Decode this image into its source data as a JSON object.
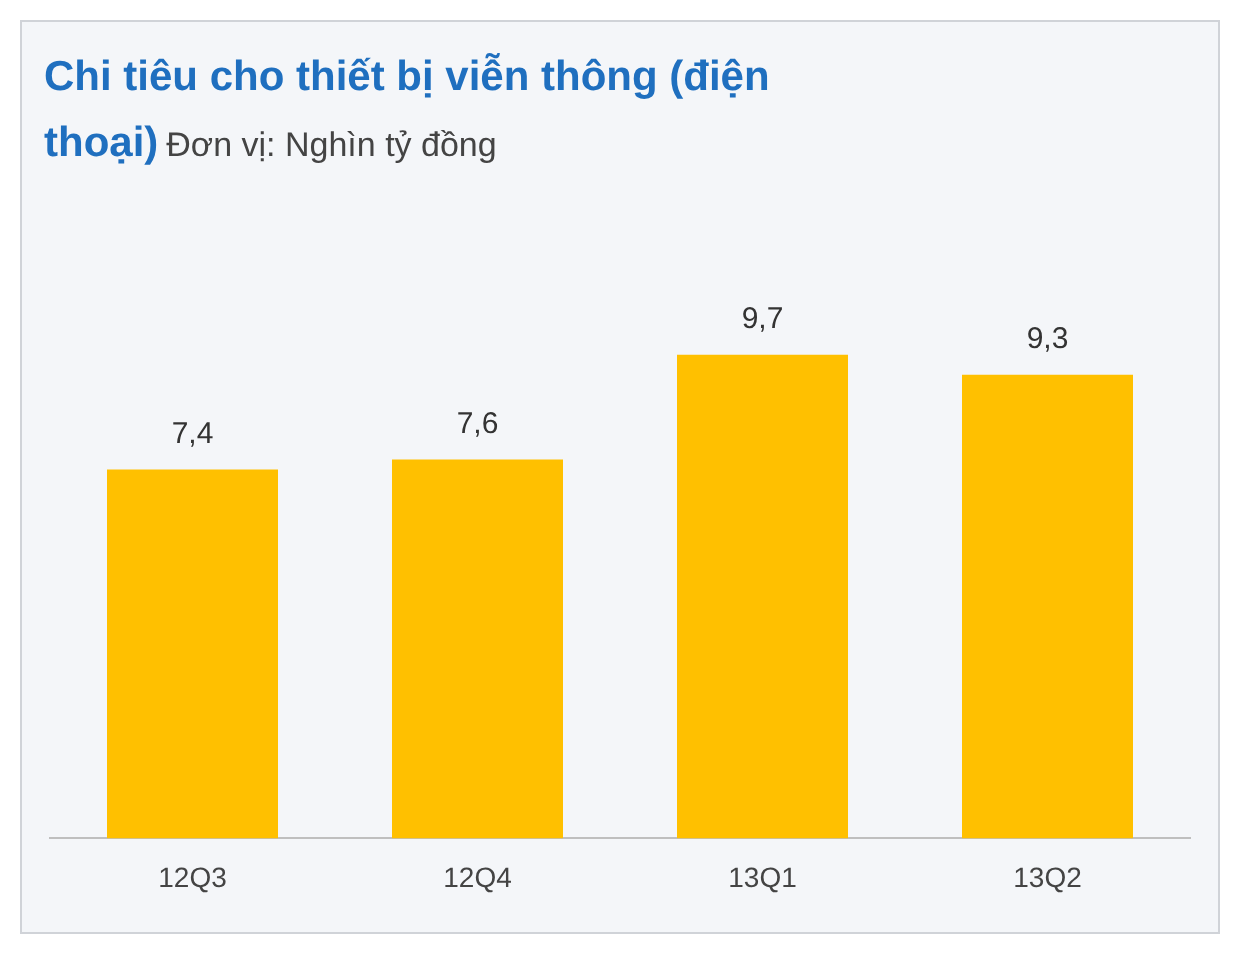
{
  "chart_data": {
    "type": "bar",
    "title": "Chi tiêu cho thiết bị viễn thông (điện thoại)",
    "subtitle": "Đơn vị: Nghìn tỷ đồng",
    "categories": [
      "12Q3",
      "12Q4",
      "13Q1",
      "13Q2"
    ],
    "values": [
      7.4,
      7.6,
      9.7,
      9.3
    ],
    "value_labels": [
      "7,4",
      "7,6",
      "9,7",
      "9,3"
    ],
    "color": "#ffc000",
    "grid": false,
    "legend": false
  }
}
